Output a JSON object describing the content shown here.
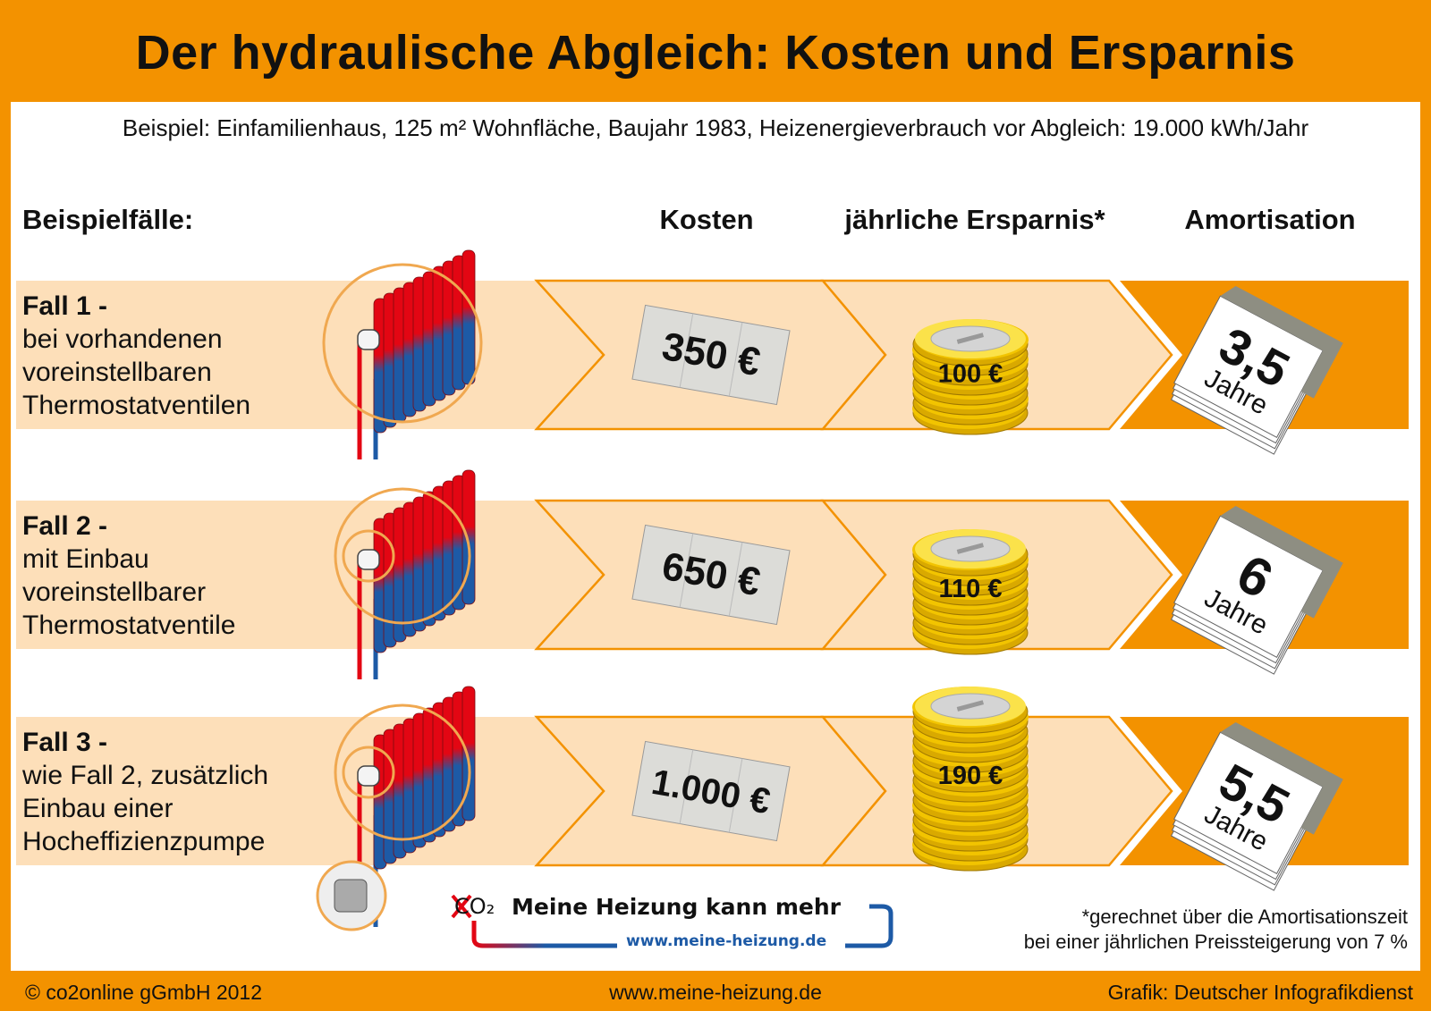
{
  "title": "Der hydraulische Abgleich: Kosten und Ersparnis",
  "subtitle": "Beispiel: Einfamilienhaus, 125 m² Wohnfläche, Baujahr 1983, Heizenergieverbrauch vor Abgleich: 19.000 kWh/Jahr",
  "columns": {
    "cases": "Beispielfälle:",
    "costs": "Kosten",
    "savings": "jährliche Ersparnis*",
    "amortization": "Amortisation"
  },
  "rows": [
    {
      "case": "Fall 1 -",
      "lines": [
        "bei vorhandenen",
        "voreinstellbaren",
        "Thermostatventilen"
      ],
      "cost": "350 €",
      "saving": "100 €",
      "years": "3,5",
      "years_unit": "Jahre"
    },
    {
      "case": "Fall 2 -",
      "lines": [
        "mit Einbau",
        "voreinstellbarer",
        "Thermostatventile"
      ],
      "cost": "650 €",
      "saving": "110 €",
      "years": "6",
      "years_unit": "Jahre"
    },
    {
      "case": "Fall 3 -",
      "lines": [
        "wie Fall 2, zusätzlich",
        "Einbau einer",
        "Hocheffizienzpumpe"
      ],
      "cost": "1.000 €",
      "saving": "190 €",
      "years": "5,5",
      "years_unit": "Jahre"
    }
  ],
  "logo": {
    "co2": "CO₂",
    "slogan": "Meine Heizung kann mehr",
    "url": "www.meine-heizung.de"
  },
  "footnote": [
    "*gerechnet über die Amortisationszeit",
    "bei einer jährlichen Preissteigerung von 7 %"
  ],
  "footer": {
    "copyright": "© co2online gGmbH 2012",
    "url": "www.meine-heizung.de",
    "credit": "Grafik: Deutscher Infografikdienst"
  },
  "colors": {
    "orange": "#F39200",
    "peach": "#FDDFB9",
    "red": "#E30613",
    "blue": "#1D5AA6",
    "gold": "#F2C400"
  }
}
